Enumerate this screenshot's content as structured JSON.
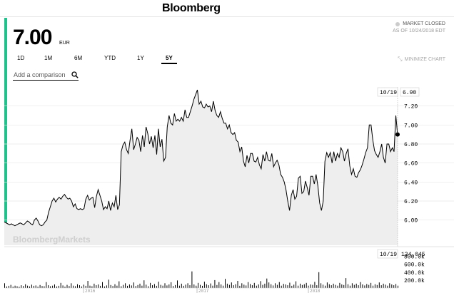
{
  "brand": {
    "name": "Bloomberg"
  },
  "quote": {
    "price": "7.00",
    "currency": "EUR"
  },
  "status": {
    "market": "MARKET CLOSED",
    "as_of": "AS OF 10/24/2018 EDT"
  },
  "tabs": [
    {
      "label": "1D",
      "active": false
    },
    {
      "label": "1M",
      "active": false
    },
    {
      "label": "6M",
      "active": false
    },
    {
      "label": "YTD",
      "active": false
    },
    {
      "label": "1Y",
      "active": false
    },
    {
      "label": "5Y",
      "active": true
    }
  ],
  "minimize": {
    "label": "MINIMIZE CHART"
  },
  "compare": {
    "placeholder": "Add a comparison"
  },
  "watermark": {
    "text": "BloombergMarkets"
  },
  "colors": {
    "accent": "#1fc28a",
    "line": "#000000",
    "area": "#eeeeee"
  },
  "chart_data": {
    "type": "line",
    "y_ticks": [
      "6.00",
      "6.20",
      "6.40",
      "6.60",
      "6.80",
      "7.00",
      "7.20"
    ],
    "ylim": [
      5.84,
      7.4
    ],
    "x_ticks": [
      "2016",
      "2017",
      "2018"
    ],
    "cursor": {
      "date": "10/19",
      "price": "6.90",
      "volume": "134,045"
    },
    "volume_ticks": [
      "200.0k",
      "400.0k",
      "600.0k",
      "800.0k"
    ],
    "volume_max": 900,
    "grid": true,
    "series": [
      {
        "values": [
          5.98,
          5.97,
          5.96,
          5.95,
          5.96,
          5.95,
          5.94,
          5.95,
          5.96,
          5.97,
          5.96,
          5.95,
          5.97,
          5.99,
          5.98,
          5.96,
          5.95,
          6.0,
          6.02,
          5.99,
          5.95,
          5.94,
          5.95,
          5.98,
          6.0,
          6.08,
          6.14,
          6.2,
          6.23,
          6.19,
          6.22,
          6.24,
          6.22,
          6.25,
          6.27,
          6.24,
          6.22,
          6.23,
          6.2,
          6.14,
          6.17,
          6.12,
          6.11,
          6.12,
          6.11,
          6.12,
          6.22,
          6.26,
          6.21,
          6.23,
          6.24,
          6.13,
          6.25,
          6.32,
          6.26,
          6.2,
          6.11,
          6.14,
          6.12,
          6.2,
          6.1,
          6.18,
          6.14,
          6.26,
          6.11,
          6.16,
          6.72,
          6.79,
          6.82,
          6.74,
          6.7,
          6.84,
          6.96,
          6.74,
          6.8,
          6.87,
          6.84,
          6.72,
          6.89,
          6.77,
          6.98,
          6.91,
          6.8,
          6.88,
          6.76,
          6.89,
          6.69,
          6.96,
          6.77,
          6.85,
          6.62,
          6.66,
          6.98,
          7.1,
          7.02,
          7.0,
          7.12,
          7.04,
          7.06,
          7.04,
          7.08,
          7.04,
          7.16,
          7.08,
          7.08,
          7.14,
          7.2,
          7.27,
          7.32,
          7.37,
          7.22,
          7.25,
          7.19,
          7.18,
          7.22,
          7.19,
          7.2,
          7.14,
          7.25,
          7.15,
          7.1,
          7.08,
          7.14,
          7.07,
          7.02,
          7.02,
          6.96,
          7.0,
          6.92,
          6.9,
          6.92,
          6.84,
          6.82,
          6.72,
          6.77,
          6.62,
          6.56,
          6.68,
          6.6,
          6.7,
          6.7,
          6.62,
          6.61,
          6.66,
          6.58,
          6.54,
          6.69,
          6.62,
          6.72,
          6.63,
          6.62,
          6.7,
          6.56,
          6.6,
          6.63,
          6.58,
          6.48,
          6.45,
          6.4,
          6.32,
          6.2,
          6.1,
          6.26,
          6.32,
          6.22,
          6.25,
          6.44,
          6.46,
          6.28,
          6.3,
          6.41,
          6.34,
          6.26,
          6.46,
          6.46,
          6.38,
          6.48,
          6.36,
          6.18,
          6.1,
          6.2,
          6.62,
          6.71,
          6.66,
          6.71,
          6.6,
          6.72,
          6.62,
          6.7,
          6.66,
          6.76,
          6.72,
          6.62,
          6.7,
          6.75,
          6.57,
          6.48,
          6.54,
          6.46,
          6.45,
          6.5,
          6.53,
          6.58,
          6.64,
          6.71,
          6.76,
          7.0,
          7.0,
          6.84,
          6.73,
          6.69,
          6.66,
          6.72,
          6.8,
          6.66,
          6.6,
          6.8,
          6.8,
          6.72,
          6.76,
          6.72,
          7.1,
          6.9
        ]
      }
    ],
    "volume": [
      120,
      40,
      55,
      80,
      35,
      60,
      45,
      30,
      70,
      50,
      95,
      60,
      40,
      85,
      55,
      65,
      35,
      75,
      50,
      45,
      150,
      70,
      45,
      60,
      90,
      40,
      55,
      130,
      65,
      35,
      80,
      50,
      120,
      60,
      45,
      95,
      70,
      40,
      85,
      55,
      180,
      60,
      45,
      110,
      70,
      90,
      55,
      150,
      40,
      65,
      210,
      75,
      50,
      95,
      60,
      170,
      45,
      80,
      120,
      55,
      90,
      65,
      140,
      50,
      75,
      110,
      60,
      195,
      85,
      45,
      130,
      70,
      100,
      55,
      160,
      80,
      60,
      120,
      65,
      90,
      145,
      50,
      75,
      190,
      60,
      110,
      55,
      85,
      120,
      70,
      420,
      90,
      60,
      130,
      80,
      55,
      160,
      95,
      70,
      115,
      60,
      200,
      75,
      150,
      90,
      60,
      230,
      110,
      80,
      140,
      70,
      95,
      180,
      55,
      120,
      85,
      65,
      150,
      100,
      70,
      130,
      60,
      90,
      175,
      80,
      110,
      240,
      140,
      95,
      65,
      120,
      80,
      150,
      60,
      105,
      90,
      70,
      135,
      55,
      85,
      170,
      60,
      110,
      75,
      95,
      130,
      60,
      90,
      80,
      155,
      70,
      400,
      120,
      85,
      60,
      140,
      95,
      70,
      110,
      80,
      60,
      130,
      90,
      75,
      250,
      95,
      60,
      120,
      80,
      110,
      70,
      150,
      90,
      65,
      100,
      80,
      130,
      60,
      95,
      75,
      140,
      70,
      110,
      85,
      60,
      120,
      90,
      70,
      100,
      60
    ]
  }
}
